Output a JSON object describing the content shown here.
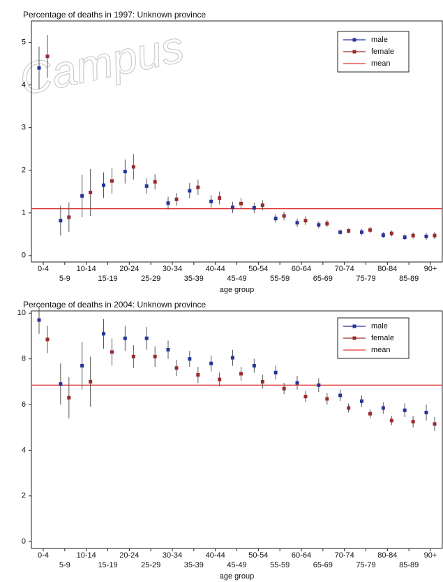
{
  "chart_data": [
    {
      "type": "errorbar",
      "title": "Percentage of deaths in 1997: Unknown province",
      "watermark": "Campus",
      "x_label": "age group",
      "categories": [
        "0-4",
        "5-9",
        "10-14",
        "15-19",
        "20-24",
        "25-29",
        "30-34",
        "35-39",
        "40-44",
        "45-49",
        "50-54",
        "55-59",
        "60-64",
        "65-69",
        "70-74",
        "75-79",
        "80-84",
        "85-89",
        "90+"
      ],
      "series": [
        {
          "name": "male",
          "color": "#27339a",
          "values": [
            4.4,
            0.82,
            1.4,
            1.65,
            1.97,
            1.63,
            1.23,
            1.52,
            1.27,
            1.13,
            1.12,
            0.87,
            0.77,
            0.72,
            0.55,
            0.55,
            0.48,
            0.43,
            0.45
          ],
          "errors": [
            0.5,
            0.35,
            0.5,
            0.3,
            0.28,
            0.18,
            0.15,
            0.18,
            0.15,
            0.13,
            0.12,
            0.1,
            0.1,
            0.08,
            0.06,
            0.07,
            0.07,
            0.07,
            0.08
          ]
        },
        {
          "name": "female",
          "color": "#9a2a2e",
          "values": [
            4.67,
            0.9,
            1.48,
            1.75,
            2.08,
            1.73,
            1.32,
            1.6,
            1.35,
            1.22,
            1.18,
            0.93,
            0.82,
            0.75,
            0.58,
            0.6,
            0.52,
            0.47,
            0.47
          ],
          "errors": [
            0.5,
            0.35,
            0.55,
            0.3,
            0.3,
            0.18,
            0.15,
            0.18,
            0.15,
            0.13,
            0.12,
            0.1,
            0.1,
            0.08,
            0.06,
            0.07,
            0.07,
            0.07,
            0.08
          ]
        }
      ],
      "mean": {
        "name": "mean",
        "value": 1.1,
        "color": "#e03535"
      },
      "ylim": [
        -0.15,
        5.5
      ],
      "yticks": [
        0,
        1,
        2,
        3,
        4,
        5
      ]
    },
    {
      "type": "errorbar",
      "title": "Percentage of deaths in 2004: Unknown province",
      "x_label": "age group",
      "categories": [
        "0-4",
        "5-9",
        "10-14",
        "15-19",
        "20-24",
        "25-29",
        "30-34",
        "35-39",
        "40-44",
        "45-49",
        "50-54",
        "55-59",
        "60-64",
        "65-69",
        "70-74",
        "75-79",
        "80-84",
        "85-89",
        "90+"
      ],
      "series": [
        {
          "name": "male",
          "color": "#27339a",
          "values": [
            9.7,
            6.9,
            7.7,
            9.1,
            8.9,
            8.9,
            8.4,
            8.0,
            7.8,
            8.05,
            7.7,
            7.4,
            6.95,
            6.85,
            6.4,
            6.15,
            5.85,
            5.75,
            5.65
          ],
          "errors": [
            0.6,
            0.9,
            1.05,
            0.65,
            0.55,
            0.5,
            0.4,
            0.35,
            0.35,
            0.35,
            0.3,
            0.3,
            0.3,
            0.3,
            0.25,
            0.25,
            0.25,
            0.3,
            0.35
          ]
        },
        {
          "name": "female",
          "color": "#9a2a2e",
          "values": [
            8.85,
            6.3,
            7.0,
            8.3,
            8.1,
            8.1,
            7.6,
            7.3,
            7.1,
            7.35,
            7.0,
            6.7,
            6.35,
            6.25,
            5.85,
            5.6,
            5.3,
            5.25,
            5.15
          ],
          "errors": [
            0.6,
            0.9,
            1.1,
            0.6,
            0.5,
            0.45,
            0.35,
            0.35,
            0.3,
            0.3,
            0.3,
            0.25,
            0.25,
            0.25,
            0.2,
            0.2,
            0.2,
            0.25,
            0.3
          ]
        }
      ],
      "mean": {
        "name": "mean",
        "value": 6.85,
        "color": "#e03535"
      },
      "ylim": [
        -0.3,
        10.1
      ],
      "yticks": [
        0,
        2,
        4,
        6,
        8,
        10
      ]
    }
  ]
}
